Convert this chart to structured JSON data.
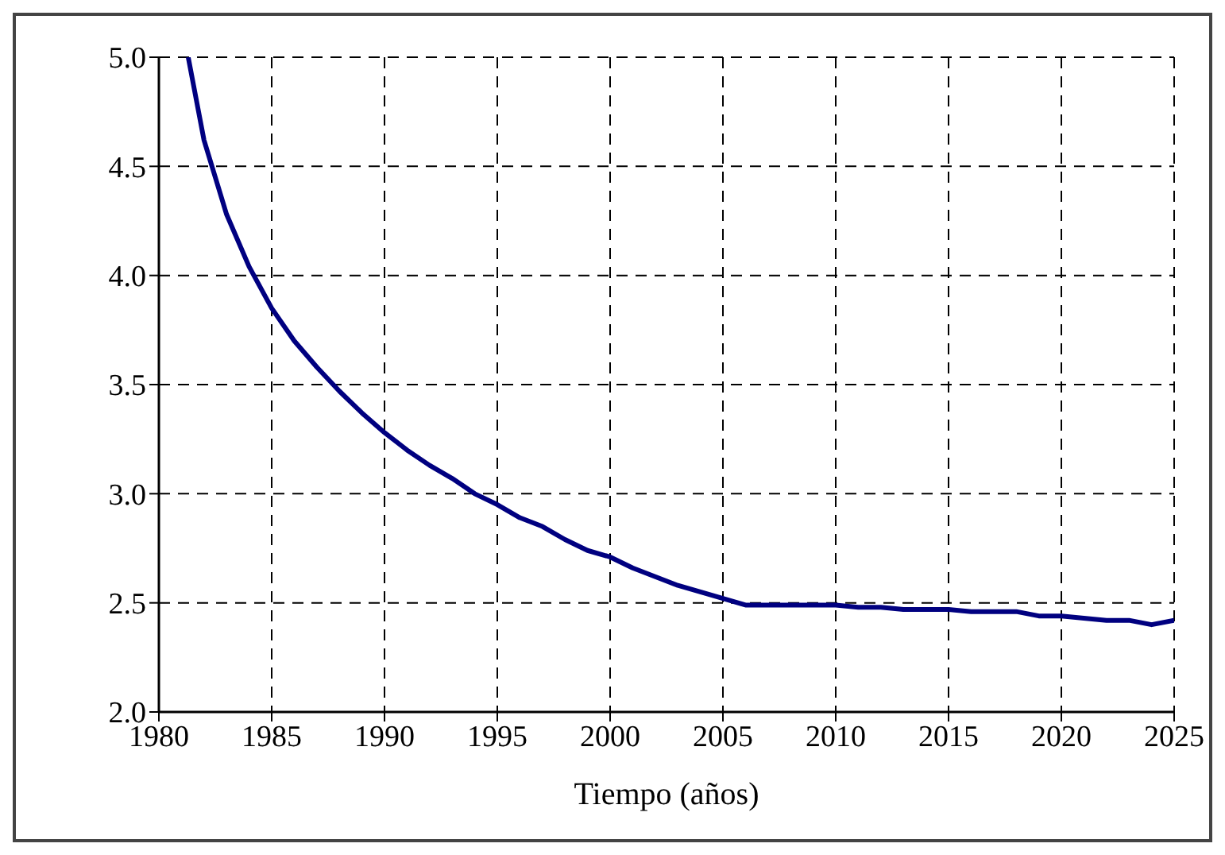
{
  "chart_data": {
    "type": "line",
    "xlabel": "Tiempo (años)",
    "x": [
      1981.3,
      1982,
      1983,
      1984,
      1985,
      1986,
      1987,
      1988,
      1989,
      1990,
      1991,
      1992,
      1993,
      1994,
      1995,
      1996,
      1997,
      1998,
      1999,
      2000,
      2001,
      2002,
      2003,
      2004,
      2005,
      2006,
      2007,
      2008,
      2009,
      2010,
      2011,
      2012,
      2013,
      2014,
      2015,
      2016,
      2017,
      2018,
      2019,
      2020,
      2021,
      2022,
      2023,
      2024,
      2025
    ],
    "series": [
      {
        "color": "#000080",
        "values": [
          5.0,
          4.62,
          4.28,
          4.04,
          3.85,
          3.7,
          3.58,
          3.47,
          3.37,
          3.28,
          3.2,
          3.13,
          3.07,
          3.0,
          2.95,
          2.89,
          2.85,
          2.79,
          2.74,
          2.71,
          2.66,
          2.62,
          2.58,
          2.55,
          2.52,
          2.49,
          2.49,
          2.49,
          2.49,
          2.49,
          2.48,
          2.48,
          2.47,
          2.47,
          2.47,
          2.46,
          2.46,
          2.46,
          2.44,
          2.44,
          2.43,
          2.42,
          2.42,
          2.4,
          2.42
        ]
      }
    ],
    "xlim": [
      1980,
      2025
    ],
    "xticks": [
      1980,
      1985,
      1990,
      1995,
      2000,
      2005,
      2010,
      2015,
      2020,
      2025
    ],
    "ylim": [
      2.0,
      5.0
    ],
    "yticks": [
      {
        "value": 2,
        "label": "2.0"
      },
      2.5,
      {
        "value": 3,
        "label": "3.0"
      },
      3.5,
      {
        "value": 4,
        "label": "4.0"
      },
      4.5,
      {
        "value": 5,
        "label": "5.0"
      }
    ],
    "grid": true,
    "legend": false,
    "marker": "none",
    "line_style": "solid"
  }
}
